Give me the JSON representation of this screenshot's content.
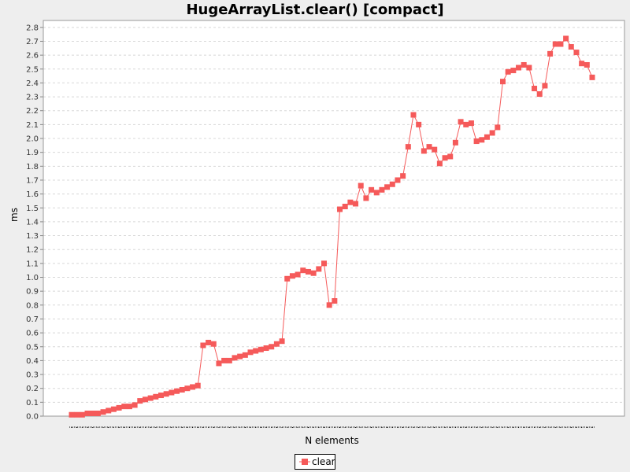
{
  "chart_data": {
    "type": "line",
    "title": "HugeArrayList.clear() [compact]",
    "xlabel": "N elements",
    "ylabel": "ms",
    "ylim": [
      0,
      2.85
    ],
    "yticks": [
      "0.0",
      "0.1",
      "0.2",
      "0.3",
      "0.4",
      "0.5",
      "0.6",
      "0.7",
      "0.8",
      "0.9",
      "1.0",
      "1.1",
      "1.2",
      "1.3",
      "1.4",
      "1.5",
      "1.6",
      "1.7",
      "1.8",
      "1.9",
      "2.0",
      "2.1",
      "2.2",
      "2.3",
      "2.4",
      "2.5",
      "2.6",
      "2.7",
      "2.8"
    ],
    "grid": true,
    "legend_position": "bottom-center",
    "series": [
      {
        "name": "clear",
        "color": "#f55a5a",
        "marker": "square",
        "values": [
          0.01,
          0.01,
          0.01,
          0.02,
          0.02,
          0.02,
          0.03,
          0.04,
          0.05,
          0.06,
          0.07,
          0.07,
          0.08,
          0.11,
          0.12,
          0.13,
          0.14,
          0.15,
          0.16,
          0.17,
          0.18,
          0.19,
          0.2,
          0.21,
          0.22,
          0.51,
          0.53,
          0.52,
          0.38,
          0.4,
          0.4,
          0.42,
          0.43,
          0.44,
          0.46,
          0.47,
          0.48,
          0.49,
          0.5,
          0.52,
          0.54,
          0.99,
          1.01,
          1.02,
          1.05,
          1.04,
          1.03,
          1.06,
          1.1,
          0.8,
          0.83,
          1.49,
          1.51,
          1.54,
          1.53,
          1.66,
          1.57,
          1.63,
          1.61,
          1.63,
          1.65,
          1.67,
          1.7,
          1.73,
          1.94,
          2.17,
          2.1,
          1.91,
          1.94,
          1.92,
          1.82,
          1.86,
          1.87,
          1.97,
          2.12,
          2.1,
          2.11,
          1.98,
          1.99,
          2.01,
          2.04,
          2.08,
          2.41,
          2.48,
          2.49,
          2.51,
          2.53,
          2.51,
          2.36,
          2.32,
          2.38,
          2.61,
          2.68,
          2.68,
          2.72,
          2.66,
          2.62,
          2.54,
          2.53,
          2.44
        ]
      }
    ]
  }
}
